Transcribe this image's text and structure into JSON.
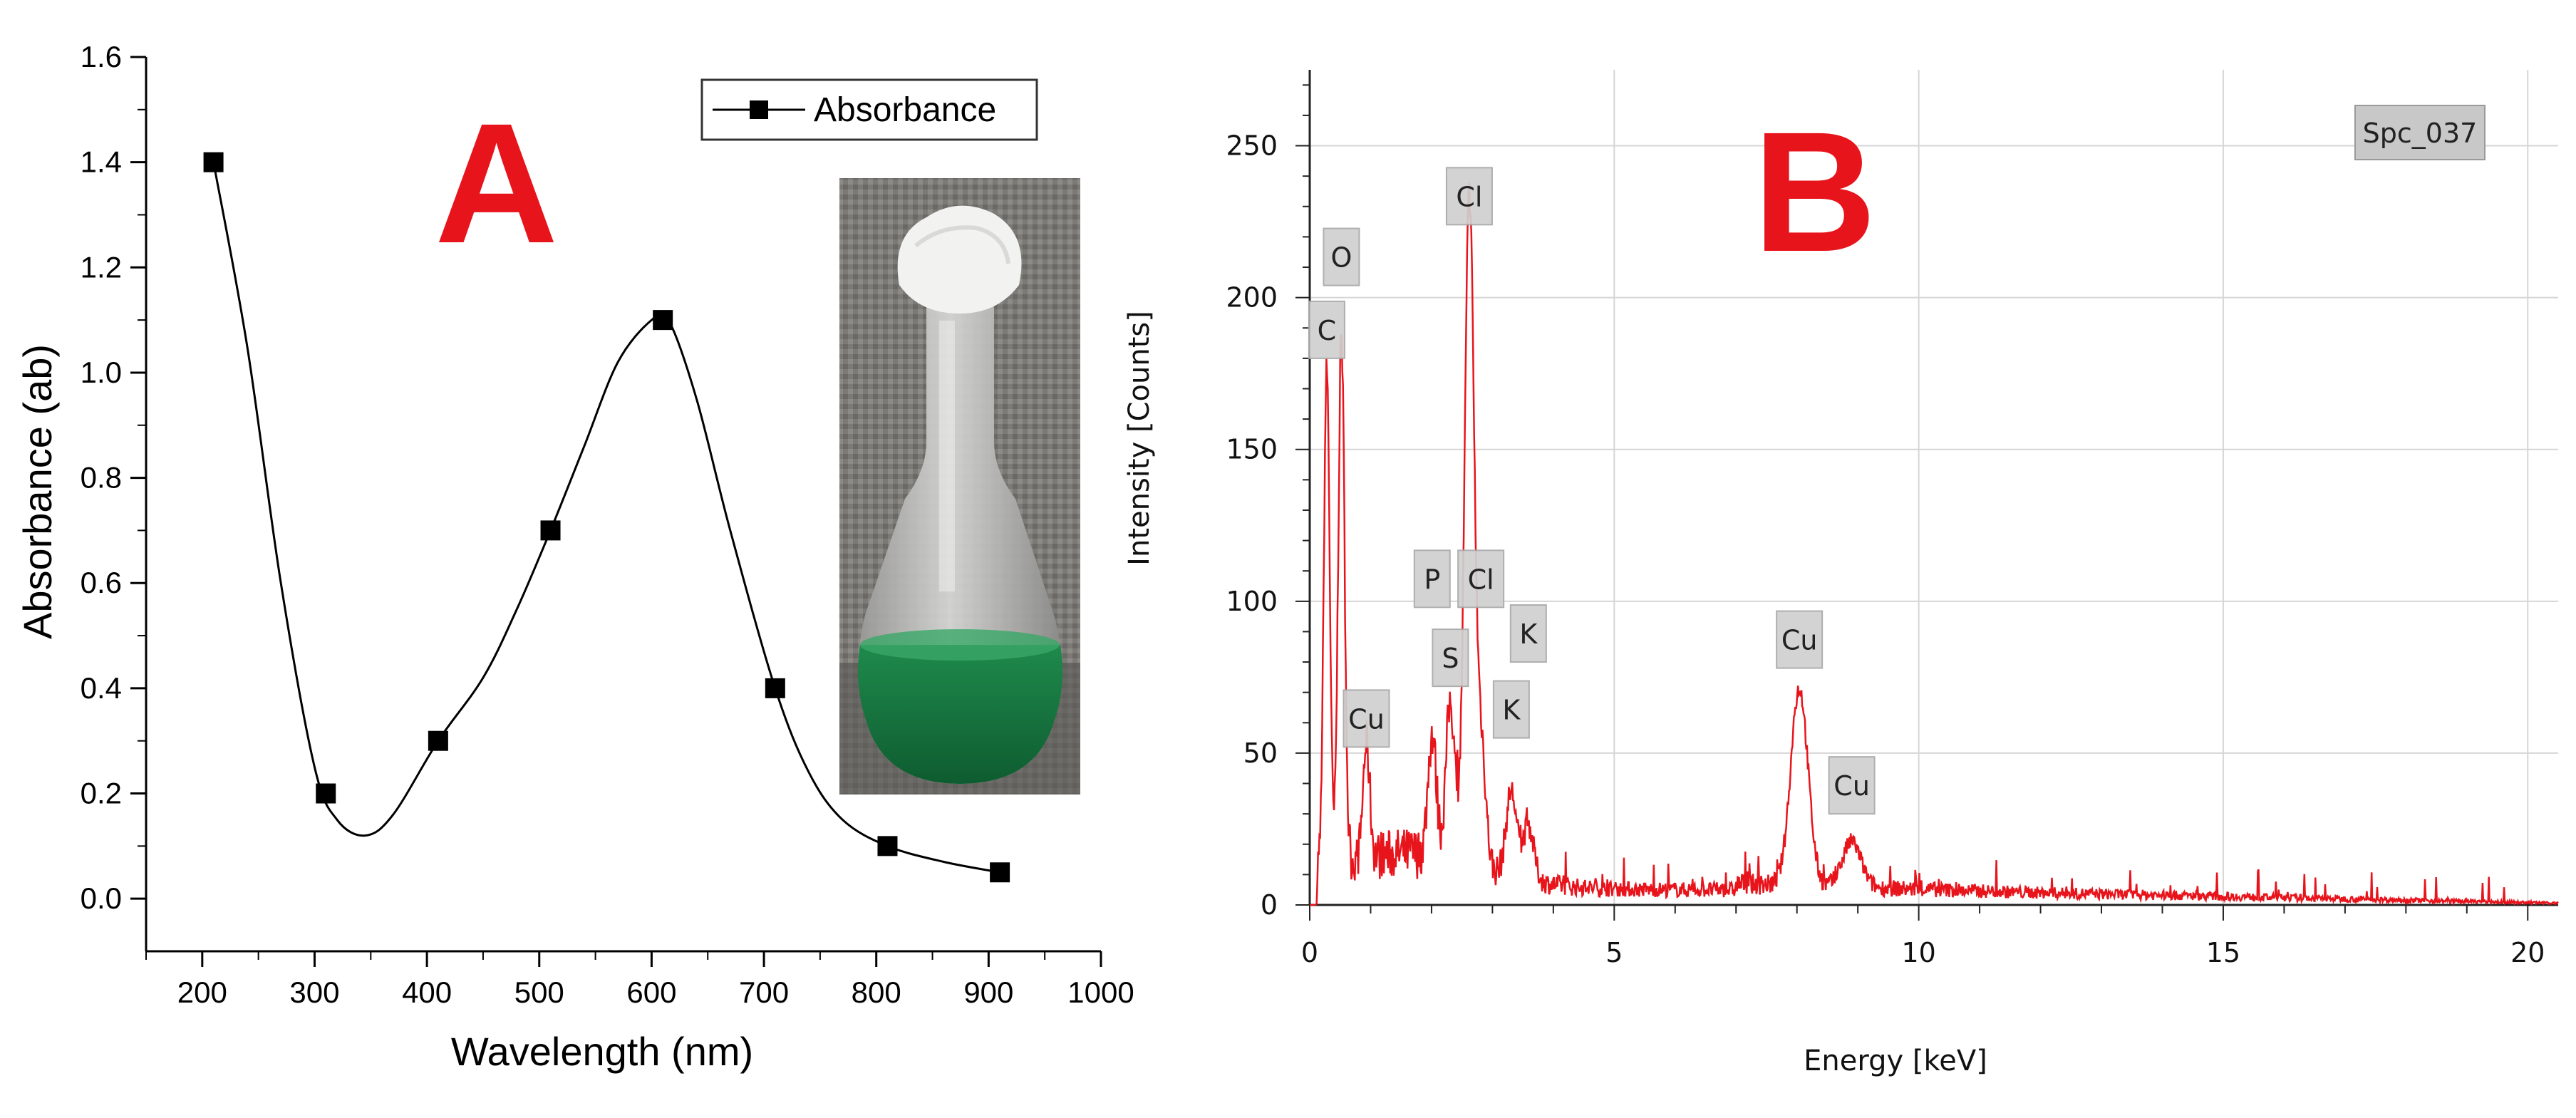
{
  "chart_data": [
    {
      "panel": "A",
      "type": "line",
      "panel_label": "A",
      "xlabel": "Wavelength (nm)",
      "ylabel": "Absorbance (ab)",
      "xlim": [
        150,
        1000
      ],
      "ylim": [
        -0.1,
        1.6
      ],
      "x_tick_labels": [
        "200",
        "300",
        "400",
        "500",
        "600",
        "700",
        "800",
        "900",
        "1000"
      ],
      "y_tick_labels": [
        "0.0",
        "0.2",
        "0.4",
        "0.6",
        "0.8",
        "1.0",
        "1.2",
        "1.4",
        "1.6"
      ],
      "legend": {
        "entries": [
          "Absorbance"
        ],
        "position": "top-right",
        "marker": "square"
      },
      "series": [
        {
          "name": "Absorbance",
          "x": [
            210,
            310,
            410,
            510,
            610,
            710,
            810,
            910
          ],
          "y": [
            1.4,
            0.2,
            0.3,
            0.7,
            1.1,
            0.4,
            0.1,
            0.05
          ]
        }
      ],
      "smooth_curve": {
        "x": [
          210,
          240,
          270,
          300,
          320,
          345,
          370,
          410,
          450,
          480,
          510,
          540,
          570,
          600,
          615,
          640,
          670,
          710,
          740,
          770,
          810,
          860,
          910
        ],
        "y": [
          1.4,
          1.05,
          0.6,
          0.25,
          0.15,
          0.12,
          0.16,
          0.3,
          0.42,
          0.55,
          0.7,
          0.86,
          1.02,
          1.1,
          1.1,
          0.95,
          0.7,
          0.4,
          0.24,
          0.15,
          0.1,
          0.07,
          0.05
        ]
      },
      "inset": "photo-of-green-solution-flask",
      "grid": false
    },
    {
      "panel": "B",
      "type": "line",
      "panel_label": "B",
      "xlabel": "Energy [keV]",
      "ylabel": "Intensity [Counts]",
      "xlim": [
        0,
        20.5
      ],
      "ylim": [
        0,
        275
      ],
      "x_tick_labels": [
        "0",
        "5",
        "10",
        "15",
        "20"
      ],
      "y_tick_labels": [
        "0",
        "50",
        "100",
        "150",
        "200",
        "250"
      ],
      "spectrum_label": "Spc_037",
      "grid": true,
      "color": "#e8141c",
      "peaks": [
        {
          "element": "C",
          "energy": 0.28,
          "counts": 165
        },
        {
          "element": "O",
          "energy": 0.52,
          "counts": 175
        },
        {
          "element": "Cu",
          "energy": 0.93,
          "counts": 38
        },
        {
          "element": "P",
          "energy": 2.01,
          "counts": 40
        },
        {
          "element": "S",
          "energy": 2.31,
          "counts": 52
        },
        {
          "element": "Cl",
          "energy": 2.62,
          "counts": 218
        },
        {
          "element": "Cl",
          "energy": 2.81,
          "counts": 42
        },
        {
          "element": "K",
          "energy": 3.31,
          "counts": 28
        },
        {
          "element": "K",
          "energy": 3.59,
          "counts": 18
        },
        {
          "element": "Cu",
          "energy": 8.04,
          "counts": 65
        },
        {
          "element": "Cu",
          "energy": 8.9,
          "counts": 15
        }
      ],
      "peak_labels": [
        {
          "text": "C",
          "energy": 0.28,
          "counts": 180
        },
        {
          "text": "O",
          "energy": 0.52,
          "counts": 204
        },
        {
          "text": "Cu",
          "energy": 0.93,
          "counts": 52
        },
        {
          "text": "P",
          "energy": 2.01,
          "counts": 98
        },
        {
          "text": "S",
          "energy": 2.31,
          "counts": 72
        },
        {
          "text": "Cl",
          "energy": 2.62,
          "counts": 224
        },
        {
          "text": "Cl",
          "energy": 2.81,
          "counts": 98
        },
        {
          "text": "K",
          "energy": 3.31,
          "counts": 55
        },
        {
          "text": "K",
          "energy": 3.59,
          "counts": 80
        },
        {
          "text": "Cu",
          "energy": 8.04,
          "counts": 78
        },
        {
          "text": "Cu",
          "energy": 8.9,
          "counts": 30
        }
      ]
    }
  ]
}
